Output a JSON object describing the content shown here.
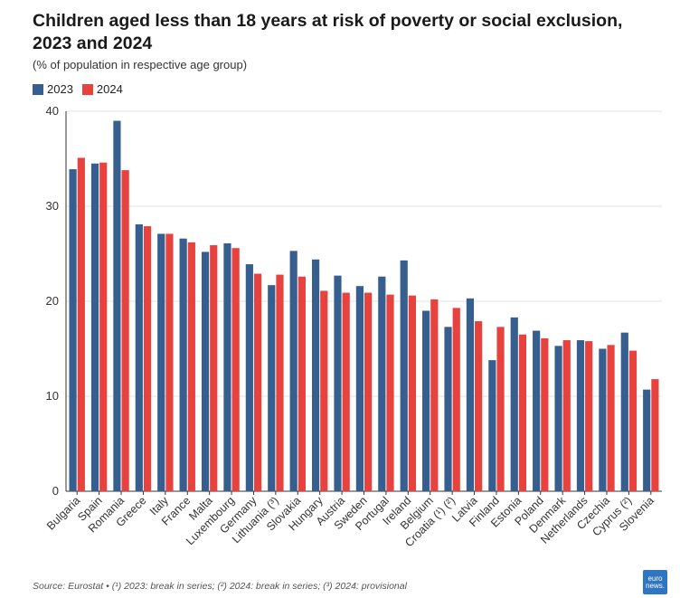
{
  "header": {
    "title": "Children aged less than 18 years at risk of poverty or social exclusion, 2023 and 2024",
    "subtitle": "(% of population in respective age group)"
  },
  "legend": [
    {
      "label": "2023",
      "color": "#365f8f"
    },
    {
      "label": "2024",
      "color": "#e8423f"
    }
  ],
  "chart_data": {
    "type": "bar",
    "categories": [
      "Bulgaria",
      "Spain",
      "Romania",
      "Greece",
      "Italy",
      "France",
      "Malta",
      "Luxembourg",
      "Germany",
      "Lithuania (³)",
      "Slovakia",
      "Hungary",
      "Austria",
      "Sweden",
      "Portugal",
      "Ireland",
      "Belgium",
      "Croatia (¹) (²)",
      "Latvia",
      "Finland",
      "Estonia",
      "Poland",
      "Denmark",
      "Netherlands",
      "Czechia",
      "Cyprus (²)",
      "Slovenia"
    ],
    "series": [
      {
        "name": "2023",
        "color": "#365f8f",
        "values": [
          33.9,
          34.5,
          39.0,
          28.1,
          27.1,
          26.6,
          25.2,
          26.1,
          23.9,
          21.7,
          25.3,
          24.4,
          22.7,
          21.6,
          22.6,
          24.3,
          19.0,
          17.3,
          20.3,
          13.8,
          18.3,
          16.9,
          15.3,
          15.9,
          15.0,
          16.7,
          10.7
        ]
      },
      {
        "name": "2024",
        "color": "#e8423f",
        "values": [
          35.1,
          34.6,
          33.8,
          27.9,
          27.1,
          26.2,
          25.9,
          25.6,
          22.9,
          22.8,
          22.6,
          21.1,
          20.9,
          20.9,
          20.7,
          20.6,
          20.2,
          19.3,
          17.9,
          17.3,
          16.5,
          16.1,
          15.9,
          15.8,
          15.4,
          14.8,
          11.8
        ]
      }
    ],
    "ylim": [
      0,
      40
    ],
    "yticks": [
      0,
      10,
      20,
      30,
      40
    ],
    "grid": true
  },
  "footer": {
    "source": "Source: Eurostat • (¹) 2023: break in series; (²) 2024: break in series; (³) 2024: provisional",
    "logo_top": "euro",
    "logo_bottom": "news."
  }
}
